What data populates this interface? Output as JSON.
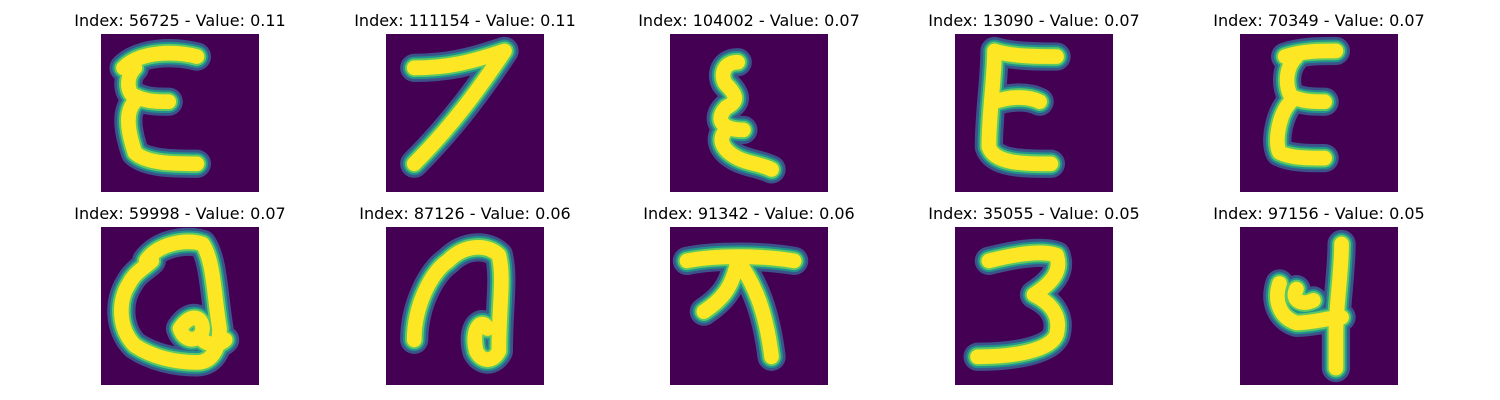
{
  "chart_data": {
    "type": "image-grid",
    "colormap": "viridis",
    "background_color": "#440154",
    "stroke_color": "#fde725",
    "edge_colors": [
      "#3b528b",
      "#21918c",
      "#5ec962"
    ],
    "panels": [
      {
        "title": "Index: 56725 - Value: 0.11",
        "index": 56725,
        "value": 0.11,
        "glyph": "epsilon-wide"
      },
      {
        "title": "Index: 111154 - Value: 0.11",
        "index": 111154,
        "value": 0.11,
        "glyph": "seven"
      },
      {
        "title": "Index: 104002 - Value: 0.07",
        "index": 104002,
        "value": 0.07,
        "glyph": "epsilon-narrow"
      },
      {
        "title": "Index: 13090 - Value: 0.07",
        "index": 13090,
        "value": 0.07,
        "glyph": "e-block"
      },
      {
        "title": "Index: 70349 - Value: 0.07",
        "index": 70349,
        "value": 0.07,
        "glyph": "epsilon-slim"
      },
      {
        "title": "Index: 59998 - Value: 0.07",
        "index": 59998,
        "value": 0.07,
        "glyph": "loop-q"
      },
      {
        "title": "Index: 87126 - Value: 0.06",
        "index": 87126,
        "value": 0.06,
        "glyph": "arch-loop"
      },
      {
        "title": "Index: 91342 - Value: 0.06",
        "index": 91342,
        "value": 0.06,
        "glyph": "t-branch"
      },
      {
        "title": "Index: 35055 - Value: 0.05",
        "index": 35055,
        "value": 0.05,
        "glyph": "three"
      },
      {
        "title": "Index: 97156 - Value: 0.05",
        "index": 97156,
        "value": 0.05,
        "glyph": "hook-four"
      }
    ]
  }
}
